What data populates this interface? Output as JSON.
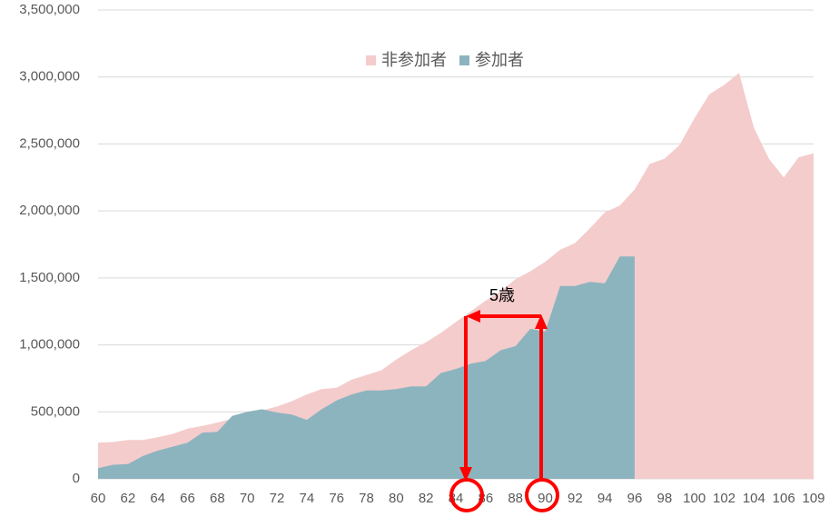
{
  "chart_data": {
    "type": "area",
    "categories": [
      "60",
      null,
      "62",
      null,
      "64",
      null,
      "66",
      null,
      "68",
      null,
      "70",
      null,
      "72",
      null,
      "74",
      null,
      "76",
      null,
      "78",
      null,
      "80",
      null,
      "82",
      null,
      "84",
      null,
      "86",
      null,
      "88",
      null,
      "90",
      null,
      "92",
      null,
      "94",
      null,
      "96",
      null,
      "98",
      null,
      "100",
      null,
      "102",
      null,
      "104",
      null,
      "106",
      null,
      "109"
    ],
    "series": [
      {
        "name": "非参加者",
        "color": "#f4cccc",
        "values": [
          270000,
          275000,
          290000,
          290000,
          310000,
          335000,
          375000,
          395000,
          420000,
          450000,
          490000,
          510000,
          540000,
          580000,
          630000,
          670000,
          680000,
          740000,
          775000,
          810000,
          890000,
          960000,
          1020000,
          1090000,
          1170000,
          1250000,
          1330000,
          1400000,
          1490000,
          1550000,
          1620000,
          1710000,
          1760000,
          1870000,
          1990000,
          2040000,
          2160000,
          2350000,
          2390000,
          2490000,
          2690000,
          2870000,
          2940000,
          3030000,
          2620000,
          2390000,
          2250000,
          2400000,
          2430000
        ]
      },
      {
        "name": "参加者",
        "color": "#8cb4bf",
        "values": [
          80000,
          105000,
          110000,
          170000,
          210000,
          240000,
          270000,
          345000,
          350000,
          470000,
          500000,
          520000,
          495000,
          480000,
          440000,
          520000,
          585000,
          630000,
          660000,
          660000,
          670000,
          690000,
          690000,
          790000,
          820000,
          860000,
          880000,
          960000,
          990000,
          1120000,
          1100000,
          1440000,
          1440000,
          1470000,
          1460000,
          1660000,
          1660000,
          null,
          null,
          null,
          null,
          null,
          null,
          null,
          null,
          null,
          null,
          null,
          null
        ]
      }
    ],
    "ylim": [
      0,
      3500000
    ],
    "yticks": [
      0,
      {
        "value": 500000,
        "label": "500,000"
      },
      {
        "value": 1000000,
        "label": "1,000,000"
      },
      {
        "value": 1500000,
        "label": "1,500,000"
      },
      {
        "value": 2000000,
        "label": "2,000,000"
      },
      {
        "value": 2500000,
        "label": "2,500,000"
      },
      {
        "value": 3000000,
        "label": "3,000,000"
      },
      {
        "value": 3500000,
        "label": "3,500,000"
      }
    ],
    "grid": true,
    "legend": "top",
    "annotation": "5歳"
  }
}
